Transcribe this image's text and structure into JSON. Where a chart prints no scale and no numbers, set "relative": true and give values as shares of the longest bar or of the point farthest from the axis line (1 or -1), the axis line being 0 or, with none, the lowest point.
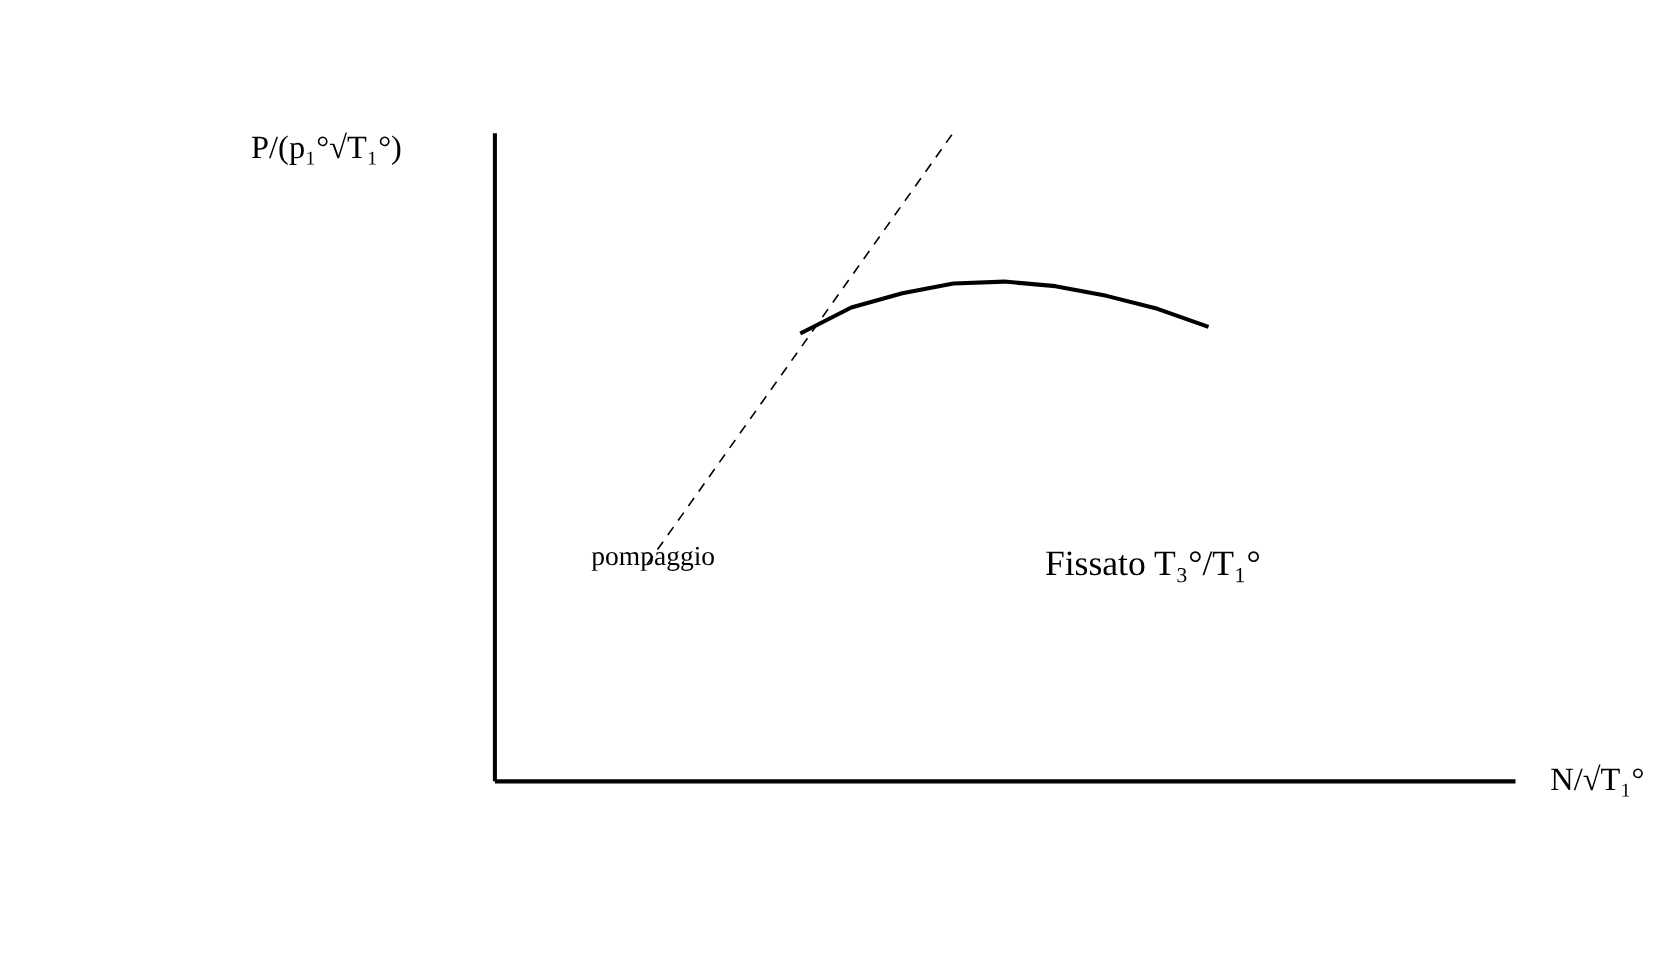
{
  "chart_data": {
    "type": "line",
    "relative": true,
    "categories": [
      null,
      null,
      null,
      null,
      null,
      null,
      null,
      null,
      null,
      null,
      null,
      null,
      null,
      null,
      null,
      null,
      null,
      null,
      null,
      null,
      null
    ],
    "xlabel": "N/√T₁°",
    "ylabel": "P/(p₁°√T₁°)",
    "annotations": [
      "pompaggio",
      "Fissato T₃°/T₁°"
    ],
    "grid": false,
    "series": [
      {
        "color": "#000000",
        "line_style": "dashed",
        "values": [
          null,
          null,
          null,
          0.334,
          null,
          null,
          null,
          null,
          null,
          1,
          null,
          null,
          null,
          null,
          null,
          null,
          null,
          null,
          null,
          null,
          null
        ]
      },
      {
        "color": "#000000",
        "line_style": "solid",
        "values": [
          null,
          null,
          null,
          null,
          null,
          null,
          0.69,
          0.73,
          0.752,
          0.767,
          0.77,
          0.763,
          0.748,
          0.728,
          0.7,
          null,
          null,
          null,
          null,
          null,
          null
        ]
      }
    ]
  }
}
